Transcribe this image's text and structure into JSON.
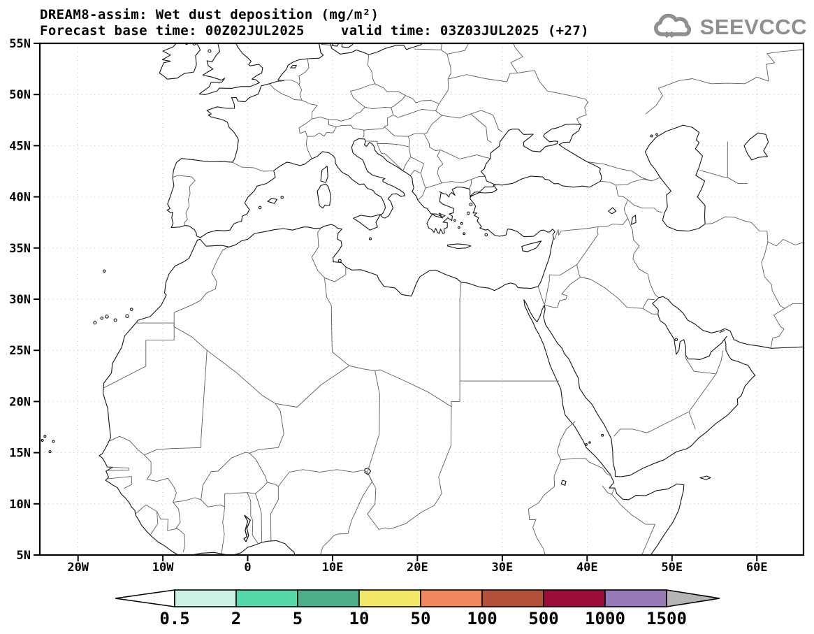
{
  "header": {
    "title": "DREAM8-assim: Wet dust deposition (mg/m²)",
    "forecast_base": "Forecast base time: 00Z02JUL2025",
    "valid_time": "valid time: 03Z03JUL2025 (+27)",
    "logo_text": "SEEVCCC",
    "logo_color": "#8f8f8f"
  },
  "map": {
    "lon_range": [
      -24.5,
      65.5
    ],
    "lat_range": [
      5,
      55
    ],
    "lon_axis": {
      "ticks": [
        {
          "label": "20W",
          "deg": -20
        },
        {
          "label": "10W",
          "deg": -10
        },
        {
          "label": "0",
          "deg": 0
        },
        {
          "label": "10E",
          "deg": 10
        },
        {
          "label": "20E",
          "deg": 20
        },
        {
          "label": "30E",
          "deg": 30
        },
        {
          "label": "40E",
          "deg": 40
        },
        {
          "label": "50E",
          "deg": 50
        },
        {
          "label": "60E",
          "deg": 60
        }
      ]
    },
    "lat_axis": {
      "ticks": [
        {
          "label": "55N",
          "deg": 55
        },
        {
          "label": "50N",
          "deg": 50
        },
        {
          "label": "45N",
          "deg": 45
        },
        {
          "label": "40N",
          "deg": 40
        },
        {
          "label": "35N",
          "deg": 35
        },
        {
          "label": "30N",
          "deg": 30
        },
        {
          "label": "25N",
          "deg": 25
        },
        {
          "label": "20N",
          "deg": 20
        },
        {
          "label": "15N",
          "deg": 15
        },
        {
          "label": "10N",
          "deg": 10
        },
        {
          "label": "5N",
          "deg": 5
        }
      ]
    },
    "grid_lons": [
      -20,
      -10,
      0,
      10,
      20,
      30,
      40,
      50,
      60
    ],
    "grid_lats": [
      10,
      15,
      20,
      25,
      30,
      35,
      40,
      45,
      50
    ],
    "grid_color": "#c0c0c0"
  },
  "colorbar": {
    "labels": [
      "0.5",
      "2",
      "5",
      "10",
      "50",
      "100",
      "500",
      "1000",
      "1500"
    ],
    "below_color": "#ffffff",
    "bin_colors": [
      "#cdf1e4",
      "#57d8ab",
      "#4fae8a",
      "#f2e767",
      "#f0875f",
      "#b5503c",
      "#9c0e39",
      "#9679b7"
    ],
    "above_color": "#b5b5b5"
  }
}
